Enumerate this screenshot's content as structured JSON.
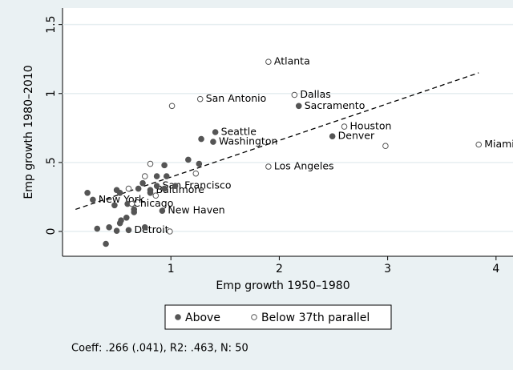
{
  "chart_data": {
    "type": "scatter",
    "xlabel": "Emp growth 1950–1980",
    "ylabel": "Emp growth 1980–2010",
    "note": "Coeff: .266 (.041), R2: .463, N: 50",
    "xlim": [
      0,
      4.09
    ],
    "ylim": [
      -0.18,
      1.62
    ],
    "xticks": [
      1,
      2,
      3,
      4
    ],
    "yticks": [
      0,
      {
        "value": 0.5,
        "label": ".5"
      },
      1,
      1.5
    ],
    "grid": true,
    "legend": "bottom",
    "fit_line": {
      "x": [
        0.12,
        3.84
      ],
      "values": [
        0.16,
        1.15
      ]
    },
    "series": [
      {
        "name": "Above",
        "color": "#555555",
        "marker": "filled",
        "x": [
          0.23,
          0.28,
          0.32,
          0.4,
          0.43,
          0.5,
          0.5,
          0.48,
          0.53,
          0.53,
          0.54,
          0.59,
          0.6,
          0.61,
          0.66,
          0.66,
          0.7,
          0.74,
          0.76,
          0.81,
          0.81,
          0.87,
          0.92,
          0.87,
          0.94,
          0.94,
          0.96,
          1.04,
          1.16,
          1.26,
          1.28,
          1.39,
          1.41,
          2.18,
          2.49
        ],
        "values": [
          0.28,
          0.23,
          0.02,
          -0.09,
          0.03,
          0.005,
          0.3,
          0.19,
          0.28,
          0.06,
          0.08,
          0.1,
          0.2,
          0.01,
          0.16,
          0.14,
          0.31,
          0.35,
          0.03,
          0.3,
          0.28,
          0.4,
          0.15,
          0.33,
          0.31,
          0.48,
          0.4,
          0.33,
          0.52,
          0.49,
          0.67,
          0.65,
          0.72,
          0.91,
          0.69
        ],
        "labels": [
          null,
          "New York",
          null,
          null,
          null,
          null,
          null,
          null,
          null,
          null,
          null,
          null,
          "Chicago",
          "Detroit",
          null,
          null,
          null,
          null,
          null,
          "Baltimore",
          null,
          null,
          "New Haven",
          "San Francisco",
          null,
          null,
          null,
          null,
          null,
          null,
          null,
          "Washington",
          "Seattle",
          "Sacramento",
          "Denver"
        ]
      },
      {
        "name": "Below 37th parallel",
        "color": "#555555",
        "marker": "hollow",
        "x": [
          1.9,
          2.14,
          1.27,
          1.01,
          2.6,
          2.98,
          3.84,
          1.9,
          1.23,
          0.81,
          0.76,
          0.61,
          0.86,
          0.99,
          0.64
        ],
        "values": [
          1.23,
          0.99,
          0.96,
          0.91,
          0.76,
          0.62,
          0.63,
          0.47,
          0.42,
          0.49,
          0.4,
          0.31,
          0.26,
          0.0,
          0.2
        ],
        "labels": [
          "Atlanta",
          "Dallas",
          "San Antonio",
          null,
          "Houston",
          null,
          "Miami",
          "Los Angeles",
          null,
          null,
          null,
          null,
          null,
          null,
          null
        ]
      }
    ]
  }
}
